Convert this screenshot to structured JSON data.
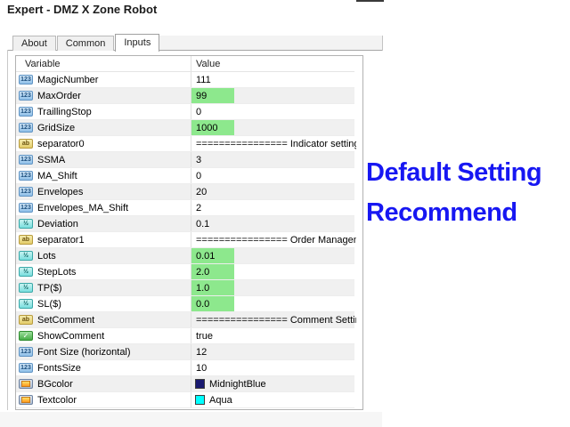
{
  "window": {
    "title": "Expert - DMZ X Zone Robot"
  },
  "tabs": [
    {
      "label": "About",
      "active": false
    },
    {
      "label": "Common",
      "active": false
    },
    {
      "label": "Inputs",
      "active": true
    }
  ],
  "inputs_table": {
    "columns": [
      "Variable",
      "Value"
    ],
    "highlight_color": "#8de88d",
    "rows": [
      {
        "variable": "MagicNumber",
        "value": "111",
        "type": "int",
        "highlight": false
      },
      {
        "variable": "MaxOrder",
        "value": "99",
        "type": "int",
        "highlight": true
      },
      {
        "variable": "TraillingStop",
        "value": "0",
        "type": "int",
        "highlight": false
      },
      {
        "variable": "GridSize",
        "value": "1000",
        "type": "int",
        "highlight": true
      },
      {
        "variable": "separator0",
        "value": "================ Indicator setting ======...",
        "type": "string",
        "highlight": false
      },
      {
        "variable": "SSMA",
        "value": "3",
        "type": "int",
        "highlight": false
      },
      {
        "variable": "MA_Shift",
        "value": "0",
        "type": "int",
        "highlight": false
      },
      {
        "variable": "Envelopes",
        "value": "20",
        "type": "int",
        "highlight": false
      },
      {
        "variable": "Envelopes_MA_Shift",
        "value": "2",
        "type": "int",
        "highlight": false
      },
      {
        "variable": "Deviation",
        "value": "0.1",
        "type": "double",
        "highlight": false
      },
      {
        "variable": "separator1",
        "value": "================ Order Management ====...",
        "type": "string",
        "highlight": false
      },
      {
        "variable": "Lots",
        "value": "0.01",
        "type": "double",
        "highlight": true
      },
      {
        "variable": "StepLots",
        "value": "2.0",
        "type": "double",
        "highlight": true
      },
      {
        "variable": "TP($)",
        "value": "1.0",
        "type": "double",
        "highlight": true
      },
      {
        "variable": "SL($)",
        "value": "0.0",
        "type": "double",
        "highlight": true
      },
      {
        "variable": "SetComment",
        "value": "================ Comment Setting =====...",
        "type": "string",
        "highlight": false
      },
      {
        "variable": "ShowComment",
        "value": "true",
        "type": "bool",
        "highlight": false
      },
      {
        "variable": "Font Size (horizontal)",
        "value": "12",
        "type": "int",
        "highlight": false
      },
      {
        "variable": "FontsSize",
        "value": "10",
        "type": "int",
        "highlight": false
      },
      {
        "variable": "BGcolor",
        "value": "MidnightBlue",
        "type": "color",
        "highlight": false,
        "swatch": "#191970"
      },
      {
        "variable": "Textcolor",
        "value": "Aqua",
        "type": "color",
        "highlight": false,
        "swatch": "#00FFFF"
      }
    ]
  },
  "icon_labels": {
    "int": "123",
    "double": "½",
    "string": "ab",
    "bool": "✓",
    "color": ""
  },
  "annotation": {
    "line1": "Default Setting",
    "line2": "Recommend",
    "color": "#1717f2"
  }
}
